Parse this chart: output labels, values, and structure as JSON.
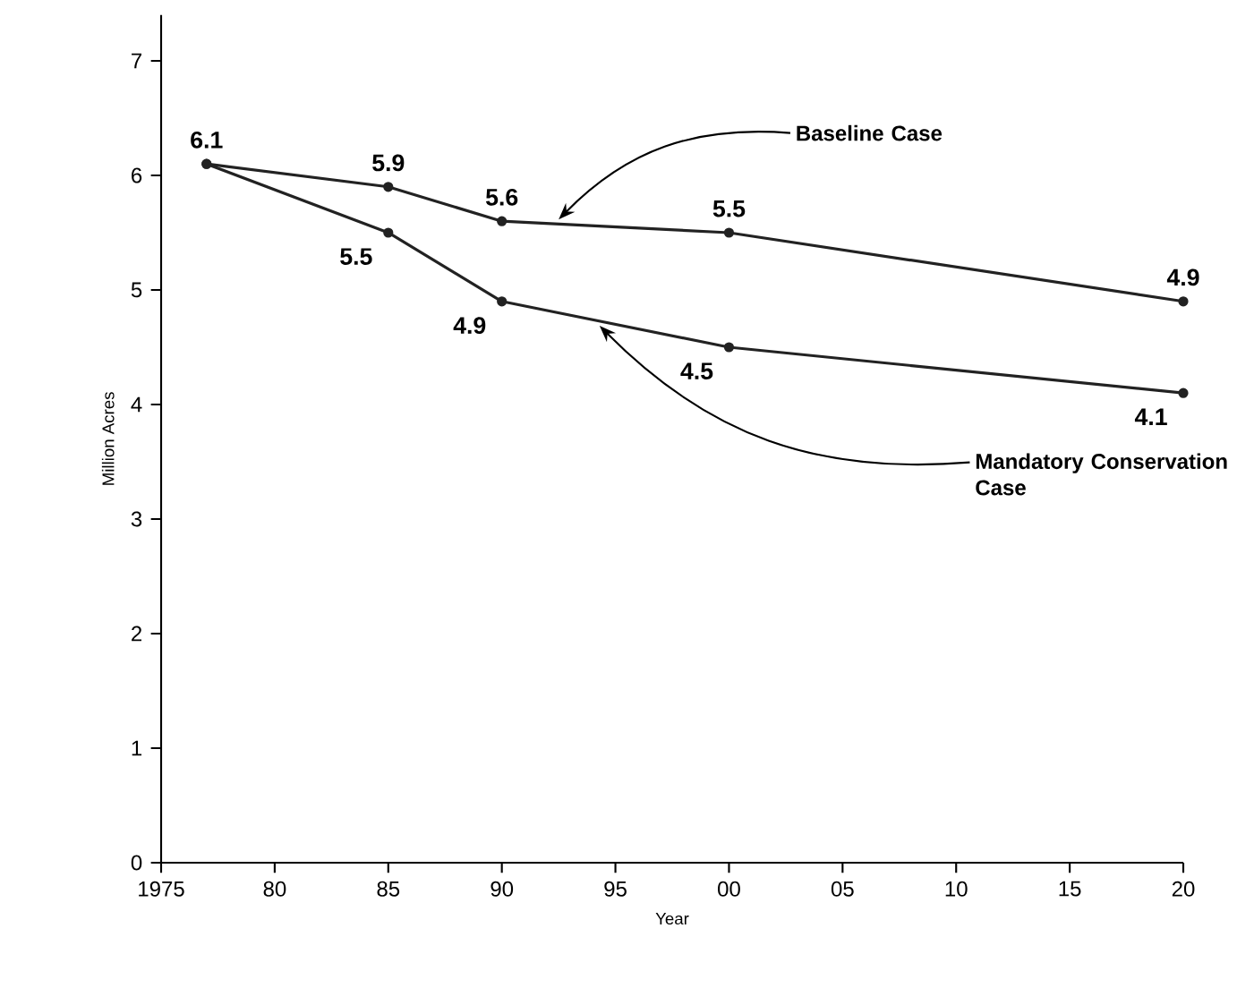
{
  "chart_data": {
    "type": "line",
    "xlabel": "Year",
    "ylabel": "Million Acres",
    "x": [
      1977,
      1985,
      1990,
      2000,
      2020
    ],
    "series": [
      {
        "name": "Baseline Case",
        "color": "#222222",
        "values": [
          6.1,
          5.9,
          5.6,
          5.5,
          4.9
        ],
        "value_labels": [
          "6.1",
          "5.9",
          "5.6",
          "5.5",
          "4.9"
        ]
      },
      {
        "name": "Mandatory Conservation Case",
        "color": "#222222",
        "values": [
          6.1,
          5.5,
          4.9,
          4.5,
          4.1
        ],
        "value_labels": [
          null,
          "5.5",
          "4.9",
          "4.5",
          "4.1"
        ]
      }
    ],
    "xlim": [
      1975,
      2020
    ],
    "ylim": [
      0,
      7.4
    ],
    "xticks": [
      1975,
      {
        "value": 1980,
        "label": "80"
      },
      {
        "value": 1985,
        "label": "85"
      },
      {
        "value": 1990,
        "label": "90"
      },
      {
        "value": 1995,
        "label": "95"
      },
      {
        "value": 2000,
        "label": "00"
      },
      {
        "value": 2005,
        "label": "05"
      },
      {
        "value": 2010,
        "label": "10"
      },
      {
        "value": 2015,
        "label": "15"
      },
      {
        "value": 2020,
        "label": "20"
      }
    ],
    "yticks": [
      0,
      1,
      2,
      3,
      4,
      5,
      6,
      7
    ],
    "marker": "circle",
    "line_style": "solid",
    "grid": false
  }
}
